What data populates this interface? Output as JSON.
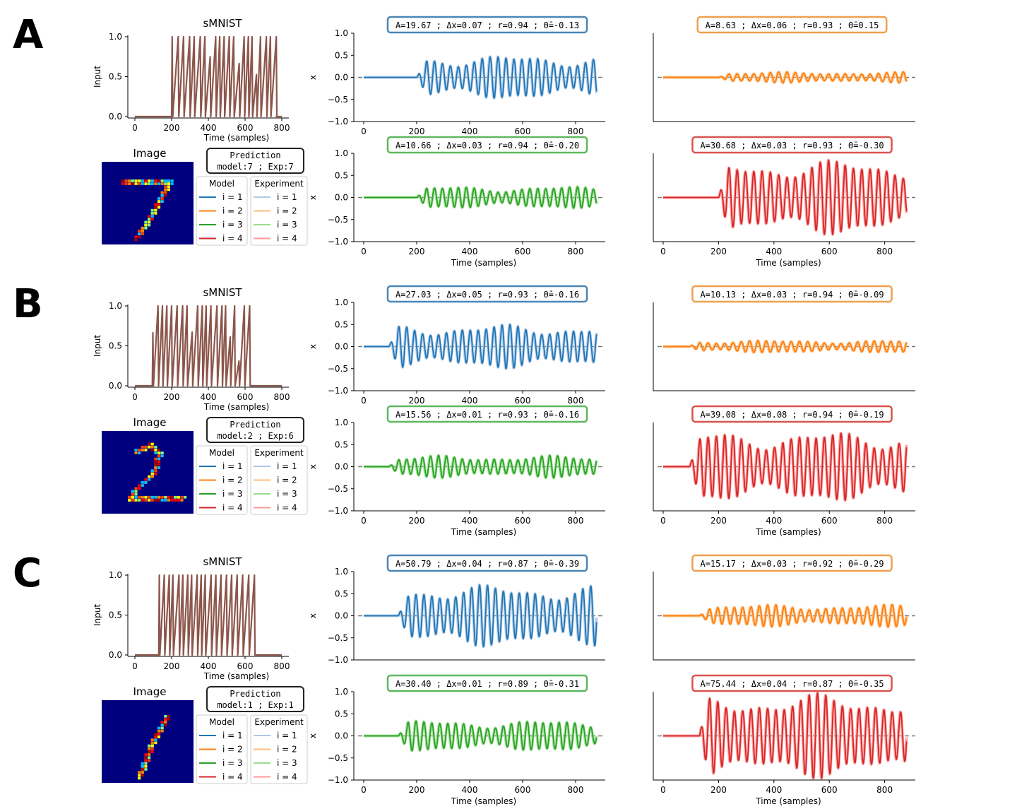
{
  "figure": {
    "input_title": "sMNIST",
    "input_ylabel": "Input",
    "xlabel": "Time (samples)",
    "osc_ylabel": "x",
    "image_title": "Image",
    "prediction_title": "Prediction",
    "legend_model_title": "Model",
    "legend_exp_title": "Experiment",
    "legend_entries": [
      "i = 1",
      "i = 2",
      "i = 3",
      "i = 4"
    ],
    "colors": {
      "input": "#8c564b",
      "model": [
        "#1f77b4",
        "#ff7f0e",
        "#2ca02c",
        "#d62728"
      ],
      "experiment": [
        "#aec7e8",
        "#ffbb78",
        "#98df8a",
        "#ff9896"
      ],
      "box_border": [
        "#4a86b6",
        "#f0a050",
        "#5cb85c",
        "#d9534f"
      ],
      "image_bg": "#00007f"
    }
  },
  "chart_data": [
    {
      "panel": "A",
      "type": "line",
      "input_series": {
        "title": "sMNIST",
        "xlabel": "Time (samples)",
        "ylabel": "Input",
        "xlim": [
          0,
          800
        ],
        "ylim": [
          0,
          1
        ],
        "xticks": [
          "0",
          "200",
          "400",
          "600",
          "800"
        ],
        "yticks": [
          "0.0",
          "0.5",
          "1.0"
        ],
        "segments": [
          [
            200,
            770
          ]
        ]
      },
      "image": {
        "title": "Image",
        "digit": "7"
      },
      "prediction": {
        "title": "Prediction",
        "text": "model:7 ; Exp:7",
        "model": 7,
        "experiment": 7
      },
      "oscillators": [
        {
          "i": 1,
          "stats": "A=19.67 ; Δx=0.07 ; r=0.94 ; Θ̄=-0.13",
          "A": 19.67,
          "dx": 0.07,
          "r": 0.94,
          "theta": -0.13,
          "onset": 200,
          "end": 880,
          "amp": 0.5,
          "ylim": [
            -1,
            1
          ],
          "yticks": [
            "1.0",
            "0.5",
            "0.0",
            "−0.5",
            "−1.0"
          ],
          "xticks": [
            "0",
            "200",
            "400",
            "600",
            "800"
          ],
          "xlabel": "Time (samples)",
          "ylabel": "x"
        },
        {
          "i": 2,
          "stats": "A=8.63 ; Δx=0.06 ; r=0.93 ; Θ̄=0.15",
          "A": 8.63,
          "dx": 0.06,
          "r": 0.93,
          "theta": 0.15,
          "onset": 200,
          "end": 880,
          "amp": 0.12,
          "ylim": [
            -1,
            1
          ],
          "yticks": [],
          "xticks": [],
          "xlabel": "",
          "ylabel": ""
        },
        {
          "i": 3,
          "stats": "A=10.66 ; Δx=0.03 ; r=0.94 ; Θ̄=-0.20",
          "A": 10.66,
          "dx": 0.03,
          "r": 0.94,
          "theta": -0.2,
          "onset": 200,
          "end": 880,
          "amp": 0.25,
          "ylim": [
            -1,
            1
          ],
          "yticks": [
            "1.0",
            "0.5",
            "0.0",
            "−0.5",
            "−1.0"
          ],
          "xticks": [
            "0",
            "200",
            "400",
            "600",
            "800"
          ],
          "xlabel": "Time (samples)",
          "ylabel": "x"
        },
        {
          "i": 4,
          "stats": "A=30.68 ; Δx=0.03 ; r=0.93 ; Θ̄=-0.30",
          "A": 30.68,
          "dx": 0.03,
          "r": 0.93,
          "theta": -0.3,
          "onset": 200,
          "end": 880,
          "amp": 0.85,
          "ylim": [
            -1,
            1
          ],
          "yticks": [],
          "xticks": [
            "0",
            "200",
            "400",
            "600",
            "800"
          ],
          "xlabel": "Time (samples)",
          "ylabel": ""
        }
      ]
    },
    {
      "panel": "B",
      "type": "line",
      "input_series": {
        "title": "sMNIST",
        "xlabel": "Time (samples)",
        "ylabel": "Input",
        "xlim": [
          0,
          800
        ],
        "ylim": [
          0,
          1
        ],
        "xticks": [
          "0",
          "200",
          "400",
          "600",
          "800"
        ],
        "yticks": [
          "0.0",
          "0.5",
          "1.0"
        ],
        "segments": [
          [
            95,
            630
          ]
        ]
      },
      "image": {
        "title": "Image",
        "digit": "2"
      },
      "prediction": {
        "title": "Prediction",
        "text": "model:2 ; Exp:6",
        "model": 2,
        "experiment": 6
      },
      "oscillators": [
        {
          "i": 1,
          "stats": "A=27.03 ; Δx=0.05 ; r=0.93 ; Θ̄=-0.16",
          "A": 27.03,
          "dx": 0.05,
          "r": 0.93,
          "theta": -0.16,
          "onset": 95,
          "end": 880,
          "amp": 0.5,
          "ylim": [
            -1,
            1
          ],
          "yticks": [
            "1.0",
            "0.5",
            "0.0",
            "−0.5",
            "−1.0"
          ],
          "xticks": [
            "0",
            "200",
            "400",
            "600",
            "800"
          ],
          "xlabel": "Time (samples)",
          "ylabel": "x"
        },
        {
          "i": 2,
          "stats": "A=10.13 ; Δx=0.03 ; r=0.94 ; Θ̄=-0.09",
          "A": 10.13,
          "dx": 0.03,
          "r": 0.94,
          "theta": -0.09,
          "onset": 95,
          "end": 880,
          "amp": 0.14,
          "ylim": [
            -1,
            1
          ],
          "yticks": [],
          "xticks": [],
          "xlabel": "",
          "ylabel": ""
        },
        {
          "i": 3,
          "stats": "A=15.56 ; Δx=0.01 ; r=0.93 ; Θ̄=-0.16",
          "A": 15.56,
          "dx": 0.01,
          "r": 0.93,
          "theta": -0.16,
          "onset": 95,
          "end": 880,
          "amp": 0.25,
          "ylim": [
            -1,
            1
          ],
          "yticks": [
            "1.0",
            "0.5",
            "0.0",
            "−0.5",
            "−1.0"
          ],
          "xticks": [
            "0",
            "200",
            "400",
            "600",
            "800"
          ],
          "xlabel": "Time (samples)",
          "ylabel": "x"
        },
        {
          "i": 4,
          "stats": "A=39.08 ; Δx=0.08 ; r=0.94 ; Θ̄=-0.19",
          "A": 39.08,
          "dx": 0.08,
          "r": 0.94,
          "theta": -0.19,
          "onset": 95,
          "end": 880,
          "amp": 0.8,
          "ylim": [
            -1,
            1
          ],
          "yticks": [],
          "xticks": [
            "0",
            "200",
            "400",
            "600",
            "800"
          ],
          "xlabel": "Time (samples)",
          "ylabel": ""
        }
      ]
    },
    {
      "panel": "C",
      "type": "line",
      "input_series": {
        "title": "sMNIST",
        "xlabel": "Time (samples)",
        "ylabel": "Input",
        "xlim": [
          0,
          800
        ],
        "ylim": [
          0,
          1
        ],
        "xticks": [
          "0",
          "200",
          "400",
          "600",
          "800"
        ],
        "yticks": [
          "0.0",
          "0.5",
          "1.0"
        ],
        "segments": [
          [
            130,
            660
          ]
        ]
      },
      "image": {
        "title": "Image",
        "digit": "1"
      },
      "prediction": {
        "title": "Prediction",
        "text": "model:1 ; Exp:1",
        "model": 1,
        "experiment": 1
      },
      "oscillators": [
        {
          "i": 1,
          "stats": "A=50.79 ; Δx=0.04 ; r=0.87 ; Θ̄=-0.39",
          "A": 50.79,
          "dx": 0.04,
          "r": 0.87,
          "theta": -0.39,
          "onset": 130,
          "end": 880,
          "amp": 0.7,
          "ylim": [
            -1,
            1
          ],
          "yticks": [
            "1.0",
            "0.5",
            "0.0",
            "−0.5",
            "−1.0"
          ],
          "xticks": [],
          "xlabel": "",
          "ylabel": "x"
        },
        {
          "i": 2,
          "stats": "A=15.17 ; Δx=0.03 ; r=0.92 ; Θ̄=-0.29",
          "A": 15.17,
          "dx": 0.03,
          "r": 0.92,
          "theta": -0.29,
          "onset": 130,
          "end": 880,
          "amp": 0.25,
          "ylim": [
            -1,
            1
          ],
          "yticks": [],
          "xticks": [],
          "xlabel": "",
          "ylabel": ""
        },
        {
          "i": 3,
          "stats": "A=30.40 ; Δx=0.01 ; r=0.89 ; Θ̄=-0.31",
          "A": 30.4,
          "dx": 0.01,
          "r": 0.89,
          "theta": -0.31,
          "onset": 130,
          "end": 880,
          "amp": 0.35,
          "ylim": [
            -1,
            1
          ],
          "yticks": [
            "1.0",
            "0.5",
            "0.0",
            "−0.5",
            "−1.0"
          ],
          "xticks": [
            "0",
            "200",
            "400",
            "600",
            "800"
          ],
          "xlabel": "Time (samples)",
          "ylabel": "x"
        },
        {
          "i": 4,
          "stats": "A=75.44 ; Δx=0.04 ; r=0.87 ; Θ̄=-0.35",
          "A": 75.44,
          "dx": 0.04,
          "r": 0.87,
          "theta": -0.35,
          "onset": 130,
          "end": 880,
          "amp": 0.95,
          "ylim": [
            -1,
            1
          ],
          "yticks": [],
          "xticks": [
            "0",
            "200",
            "400",
            "600",
            "800"
          ],
          "xlabel": "Time (samples)",
          "ylabel": ""
        }
      ]
    }
  ]
}
